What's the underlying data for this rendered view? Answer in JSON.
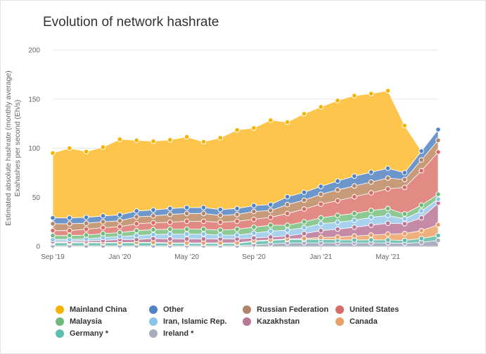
{
  "page": {
    "title": "Evolution of network hashrate"
  },
  "chart_data": {
    "type": "area",
    "stacked": true,
    "title": "Evolution of network hashrate",
    "ylabel": "Estimated absolute hashrate (monthly average) Exahashes per second (Eh/s)",
    "ylabel_lines": [
      "Estimated absolute hashrate (monthly average)",
      "Exahashes per second (Eh/s)"
    ],
    "xlabel": "",
    "ylim": [
      0,
      200
    ],
    "yticks": [
      0,
      50,
      100,
      150,
      200
    ],
    "x": [
      "2019-09",
      "2019-10",
      "2019-11",
      "2019-12",
      "2020-01",
      "2020-02",
      "2020-03",
      "2020-04",
      "2020-05",
      "2020-06",
      "2020-07",
      "2020-08",
      "2020-09",
      "2020-10",
      "2020-11",
      "2020-12",
      "2021-01",
      "2021-02",
      "2021-03",
      "2021-04",
      "2021-05",
      "2021-06",
      "2021-07",
      "2021-08"
    ],
    "xticks": [
      {
        "x": "2019-09",
        "label": "Sep '19"
      },
      {
        "x": "2020-01",
        "label": "Jan '20"
      },
      {
        "x": "2020-05",
        "label": "May '20"
      },
      {
        "x": "2020-09",
        "label": "Sep '20"
      },
      {
        "x": "2021-01",
        "label": "Jan '21"
      },
      {
        "x": "2021-05",
        "label": "May '21"
      }
    ],
    "grid": true,
    "legend_position": "bottom",
    "series": [
      {
        "name": "Ireland *",
        "color": "#aab0c2",
        "values": [
          0.5,
          0.5,
          0.5,
          0.5,
          0.5,
          0.5,
          0.5,
          0.5,
          0.5,
          0.5,
          0.5,
          0.5,
          1.5,
          2.5,
          3.5,
          3.5,
          3.5,
          3.5,
          3.5,
          3.5,
          3.5,
          3,
          4,
          6
        ]
      },
      {
        "name": "Germany *",
        "color": "#77c5b6",
        "values": [
          3,
          3,
          3,
          3,
          3,
          3,
          3,
          2.5,
          2.5,
          2.5,
          2.5,
          2.5,
          3.5,
          3.5,
          3.5,
          3.5,
          3.5,
          3,
          3,
          3,
          3,
          3,
          4,
          5
        ]
      },
      {
        "name": "Canada",
        "color": "#efb07d",
        "values": [
          0.5,
          0.5,
          0.5,
          0.5,
          0.5,
          0.5,
          0.5,
          0.5,
          0.5,
          0.5,
          0.5,
          0.5,
          0.5,
          0.5,
          0.5,
          1,
          2,
          3,
          4,
          5,
          6,
          7,
          8,
          11
        ]
      },
      {
        "name": "Kazakhstan",
        "color": "#c58aa6",
        "values": [
          1,
          1,
          1.5,
          2,
          3,
          3,
          4,
          4,
          4,
          4,
          4,
          4,
          3,
          3,
          3,
          5,
          7,
          8,
          9,
          10,
          11,
          10,
          13,
          22
        ]
      },
      {
        "name": "Iran, Islamic Rep.",
        "color": "#a8d1ee",
        "values": [
          2,
          2,
          2,
          3,
          3,
          4,
          4,
          5,
          5,
          5,
          4,
          4,
          5,
          6,
          6,
          6,
          7,
          7,
          7,
          8,
          8,
          5,
          7,
          4
        ]
      },
      {
        "name": "Malaysia",
        "color": "#8dc993",
        "values": [
          4,
          4,
          4,
          4,
          4,
          5,
          5,
          5,
          5,
          5,
          5,
          6,
          6,
          6,
          5,
          6,
          6,
          7,
          7,
          7,
          7,
          5,
          6,
          5
        ]
      },
      {
        "name": "United States",
        "color": "#e18b84",
        "values": [
          5,
          5,
          6,
          6,
          6,
          7,
          7,
          7,
          8,
          8,
          8,
          8,
          8,
          8,
          12,
          13,
          14,
          15,
          17,
          18,
          20,
          27,
          35,
          43
        ]
      },
      {
        "name": "Russian Federation",
        "color": "#c79a7a",
        "values": [
          7,
          7,
          6,
          6,
          6,
          7,
          7,
          8,
          8,
          8,
          7,
          7,
          8,
          7,
          9,
          9,
          10,
          11,
          11,
          11,
          11,
          8,
          11,
          12
        ]
      },
      {
        "name": "Other",
        "color": "#6d96cb",
        "values": [
          6,
          6,
          6,
          6,
          6,
          6,
          6,
          6,
          6,
          6,
          6,
          6,
          6,
          6,
          8,
          8,
          8,
          9,
          10,
          10,
          10,
          7,
          9,
          11
        ]
      },
      {
        "name": "Mainland China",
        "color": "#fec54d",
        "values": [
          66,
          71,
          67,
          70,
          77,
          72,
          70,
          70,
          72,
          67,
          73,
          80,
          79,
          86,
          76,
          80,
          81,
          82,
          82,
          80,
          79,
          48,
          0,
          0
        ]
      }
    ]
  },
  "legend": [
    {
      "label": "Mainland China",
      "color": "#f5b400"
    },
    {
      "label": "Other",
      "color": "#4f83c5"
    },
    {
      "label": "Russian Federation",
      "color": "#b0856a"
    },
    {
      "label": "United States",
      "color": "#d86b63"
    },
    {
      "label": "Malaysia",
      "color": "#6fb97a"
    },
    {
      "label": "Iran, Islamic Rep.",
      "color": "#8cc3ea"
    },
    {
      "label": "Kazakhstan",
      "color": "#b87898"
    },
    {
      "label": "Canada",
      "color": "#e8a06a"
    },
    {
      "label": "Germany *",
      "color": "#5ebfae"
    },
    {
      "label": "Ireland *",
      "color": "#a7adbd"
    }
  ]
}
